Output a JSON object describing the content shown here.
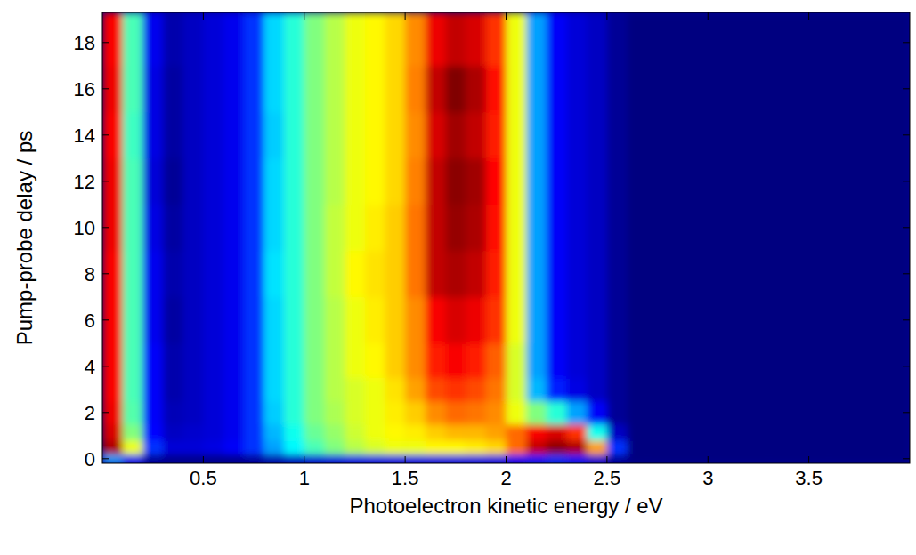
{
  "chart_data": {
    "type": "heatmap",
    "x_label": "Photoelectron kinetic energy / eV",
    "y_label": "Pump-probe delay / ps",
    "xlim": [
      0,
      4
    ],
    "ylim": [
      -0.2,
      19.3
    ],
    "xticks": [
      0.5,
      1,
      1.5,
      2,
      2.5,
      3,
      3.5
    ],
    "yticks": [
      0,
      2,
      4,
      6,
      8,
      10,
      12,
      14,
      16,
      18
    ],
    "x_bins": [
      0,
      0.1,
      0.2,
      0.3,
      0.4,
      0.5,
      0.6,
      0.7,
      0.8,
      0.9,
      1,
      1.1,
      1.2,
      1.3,
      1.4,
      1.5,
      1.6,
      1.7,
      1.8,
      1.9,
      2,
      2.1,
      2.2,
      2.3,
      2.4,
      2.5,
      2.6,
      2.7,
      2.8,
      2.9,
      3,
      3.1,
      3.2,
      3.3,
      3.4,
      3.5,
      3.6,
      3.7,
      3.8,
      3.9,
      4
    ],
    "y_bins": [
      -0.2,
      0.2,
      0.8,
      1.5,
      2.5,
      3.5,
      5,
      7,
      9,
      11,
      13,
      15,
      17,
      19.3
    ],
    "values": [
      [
        0.3,
        0.15,
        0.06,
        0.05,
        0.05,
        0.05,
        0.05,
        0.06,
        0.08,
        0.1,
        0.12,
        0.13,
        0.14,
        0.14,
        0.14,
        0.14,
        0.14,
        0.14,
        0.14,
        0.14,
        0.15,
        0.18,
        0.2,
        0.18,
        0.12,
        0.06,
        0.04,
        0.04,
        0.04,
        0.04,
        0.04,
        0.04,
        0.04,
        0.04,
        0.04,
        0.04,
        0.04,
        0.04,
        0.04,
        0.04
      ],
      [
        0.92,
        0.6,
        0.2,
        0.12,
        0.12,
        0.13,
        0.15,
        0.2,
        0.3,
        0.38,
        0.45,
        0.5,
        0.55,
        0.58,
        0.6,
        0.6,
        0.62,
        0.62,
        0.63,
        0.65,
        0.75,
        0.9,
        0.95,
        0.92,
        0.7,
        0.2,
        0.04,
        0.04,
        0.04,
        0.04,
        0.04,
        0.04,
        0.04,
        0.04,
        0.04,
        0.04,
        0.04,
        0.04,
        0.04,
        0.04
      ],
      [
        0.88,
        0.5,
        0.16,
        0.1,
        0.11,
        0.12,
        0.14,
        0.2,
        0.32,
        0.4,
        0.48,
        0.52,
        0.57,
        0.6,
        0.62,
        0.63,
        0.66,
        0.68,
        0.68,
        0.7,
        0.75,
        0.85,
        0.88,
        0.8,
        0.4,
        0.1,
        0.04,
        0.04,
        0.04,
        0.04,
        0.04,
        0.04,
        0.04,
        0.04,
        0.04,
        0.04,
        0.04,
        0.04,
        0.04,
        0.04
      ],
      [
        0.86,
        0.46,
        0.15,
        0.09,
        0.1,
        0.12,
        0.14,
        0.2,
        0.34,
        0.42,
        0.5,
        0.54,
        0.58,
        0.6,
        0.63,
        0.66,
        0.72,
        0.75,
        0.74,
        0.72,
        0.6,
        0.5,
        0.42,
        0.3,
        0.15,
        0.06,
        0.04,
        0.04,
        0.04,
        0.04,
        0.04,
        0.04,
        0.04,
        0.04,
        0.04,
        0.04,
        0.04,
        0.04,
        0.04,
        0.04
      ],
      [
        0.85,
        0.45,
        0.15,
        0.08,
        0.1,
        0.12,
        0.14,
        0.2,
        0.35,
        0.42,
        0.5,
        0.55,
        0.58,
        0.6,
        0.64,
        0.7,
        0.78,
        0.8,
        0.78,
        0.74,
        0.58,
        0.32,
        0.18,
        0.13,
        0.1,
        0.06,
        0.04,
        0.04,
        0.04,
        0.04,
        0.04,
        0.04,
        0.04,
        0.04,
        0.04,
        0.04,
        0.04,
        0.04,
        0.04,
        0.04
      ],
      [
        0.85,
        0.45,
        0.15,
        0.08,
        0.1,
        0.12,
        0.14,
        0.2,
        0.35,
        0.42,
        0.5,
        0.55,
        0.6,
        0.62,
        0.66,
        0.72,
        0.82,
        0.85,
        0.82,
        0.76,
        0.58,
        0.3,
        0.15,
        0.12,
        0.1,
        0.06,
        0.04,
        0.04,
        0.04,
        0.04,
        0.04,
        0.04,
        0.04,
        0.04,
        0.04,
        0.04,
        0.04,
        0.04,
        0.04,
        0.04
      ],
      [
        0.85,
        0.45,
        0.14,
        0.07,
        0.1,
        0.12,
        0.14,
        0.2,
        0.35,
        0.42,
        0.5,
        0.55,
        0.6,
        0.63,
        0.66,
        0.72,
        0.85,
        0.88,
        0.86,
        0.8,
        0.6,
        0.3,
        0.15,
        0.12,
        0.1,
        0.06,
        0.04,
        0.04,
        0.04,
        0.04,
        0.04,
        0.04,
        0.04,
        0.04,
        0.04,
        0.04,
        0.04,
        0.04,
        0.04,
        0.04
      ],
      [
        0.85,
        0.45,
        0.14,
        0.08,
        0.1,
        0.12,
        0.14,
        0.2,
        0.36,
        0.42,
        0.5,
        0.56,
        0.62,
        0.64,
        0.66,
        0.74,
        0.9,
        0.92,
        0.9,
        0.82,
        0.6,
        0.3,
        0.15,
        0.12,
        0.1,
        0.06,
        0.04,
        0.04,
        0.04,
        0.04,
        0.04,
        0.04,
        0.04,
        0.04,
        0.04,
        0.04,
        0.04,
        0.04,
        0.04,
        0.04
      ],
      [
        0.86,
        0.45,
        0.13,
        0.07,
        0.1,
        0.12,
        0.14,
        0.2,
        0.35,
        0.42,
        0.5,
        0.56,
        0.6,
        0.63,
        0.66,
        0.74,
        0.9,
        0.94,
        0.92,
        0.83,
        0.6,
        0.3,
        0.15,
        0.12,
        0.1,
        0.06,
        0.04,
        0.04,
        0.04,
        0.04,
        0.04,
        0.04,
        0.04,
        0.04,
        0.04,
        0.04,
        0.04,
        0.04,
        0.04,
        0.04
      ],
      [
        0.86,
        0.45,
        0.12,
        0.06,
        0.1,
        0.12,
        0.14,
        0.2,
        0.35,
        0.42,
        0.5,
        0.55,
        0.6,
        0.62,
        0.65,
        0.73,
        0.9,
        0.95,
        0.93,
        0.84,
        0.6,
        0.3,
        0.15,
        0.12,
        0.1,
        0.06,
        0.04,
        0.04,
        0.04,
        0.04,
        0.04,
        0.04,
        0.04,
        0.04,
        0.04,
        0.04,
        0.04,
        0.04,
        0.04,
        0.04
      ],
      [
        0.85,
        0.44,
        0.13,
        0.07,
        0.1,
        0.12,
        0.14,
        0.2,
        0.34,
        0.42,
        0.5,
        0.55,
        0.6,
        0.62,
        0.65,
        0.72,
        0.88,
        0.93,
        0.9,
        0.82,
        0.6,
        0.3,
        0.15,
        0.12,
        0.1,
        0.06,
        0.04,
        0.04,
        0.04,
        0.04,
        0.04,
        0.04,
        0.04,
        0.04,
        0.04,
        0.04,
        0.04,
        0.04,
        0.04,
        0.04
      ],
      [
        0.86,
        0.45,
        0.13,
        0.07,
        0.1,
        0.12,
        0.14,
        0.2,
        0.35,
        0.42,
        0.5,
        0.55,
        0.6,
        0.62,
        0.65,
        0.73,
        0.9,
        0.96,
        0.92,
        0.83,
        0.6,
        0.3,
        0.15,
        0.12,
        0.1,
        0.06,
        0.04,
        0.04,
        0.04,
        0.04,
        0.04,
        0.04,
        0.04,
        0.04,
        0.04,
        0.04,
        0.04,
        0.04,
        0.04,
        0.04
      ],
      [
        0.85,
        0.45,
        0.14,
        0.08,
        0.1,
        0.12,
        0.14,
        0.2,
        0.35,
        0.42,
        0.5,
        0.55,
        0.6,
        0.62,
        0.65,
        0.72,
        0.86,
        0.9,
        0.88,
        0.8,
        0.6,
        0.3,
        0.15,
        0.12,
        0.1,
        0.06,
        0.04,
        0.04,
        0.04,
        0.04,
        0.04,
        0.04,
        0.04,
        0.04,
        0.04,
        0.04,
        0.04,
        0.04,
        0.04,
        0.04
      ]
    ]
  }
}
